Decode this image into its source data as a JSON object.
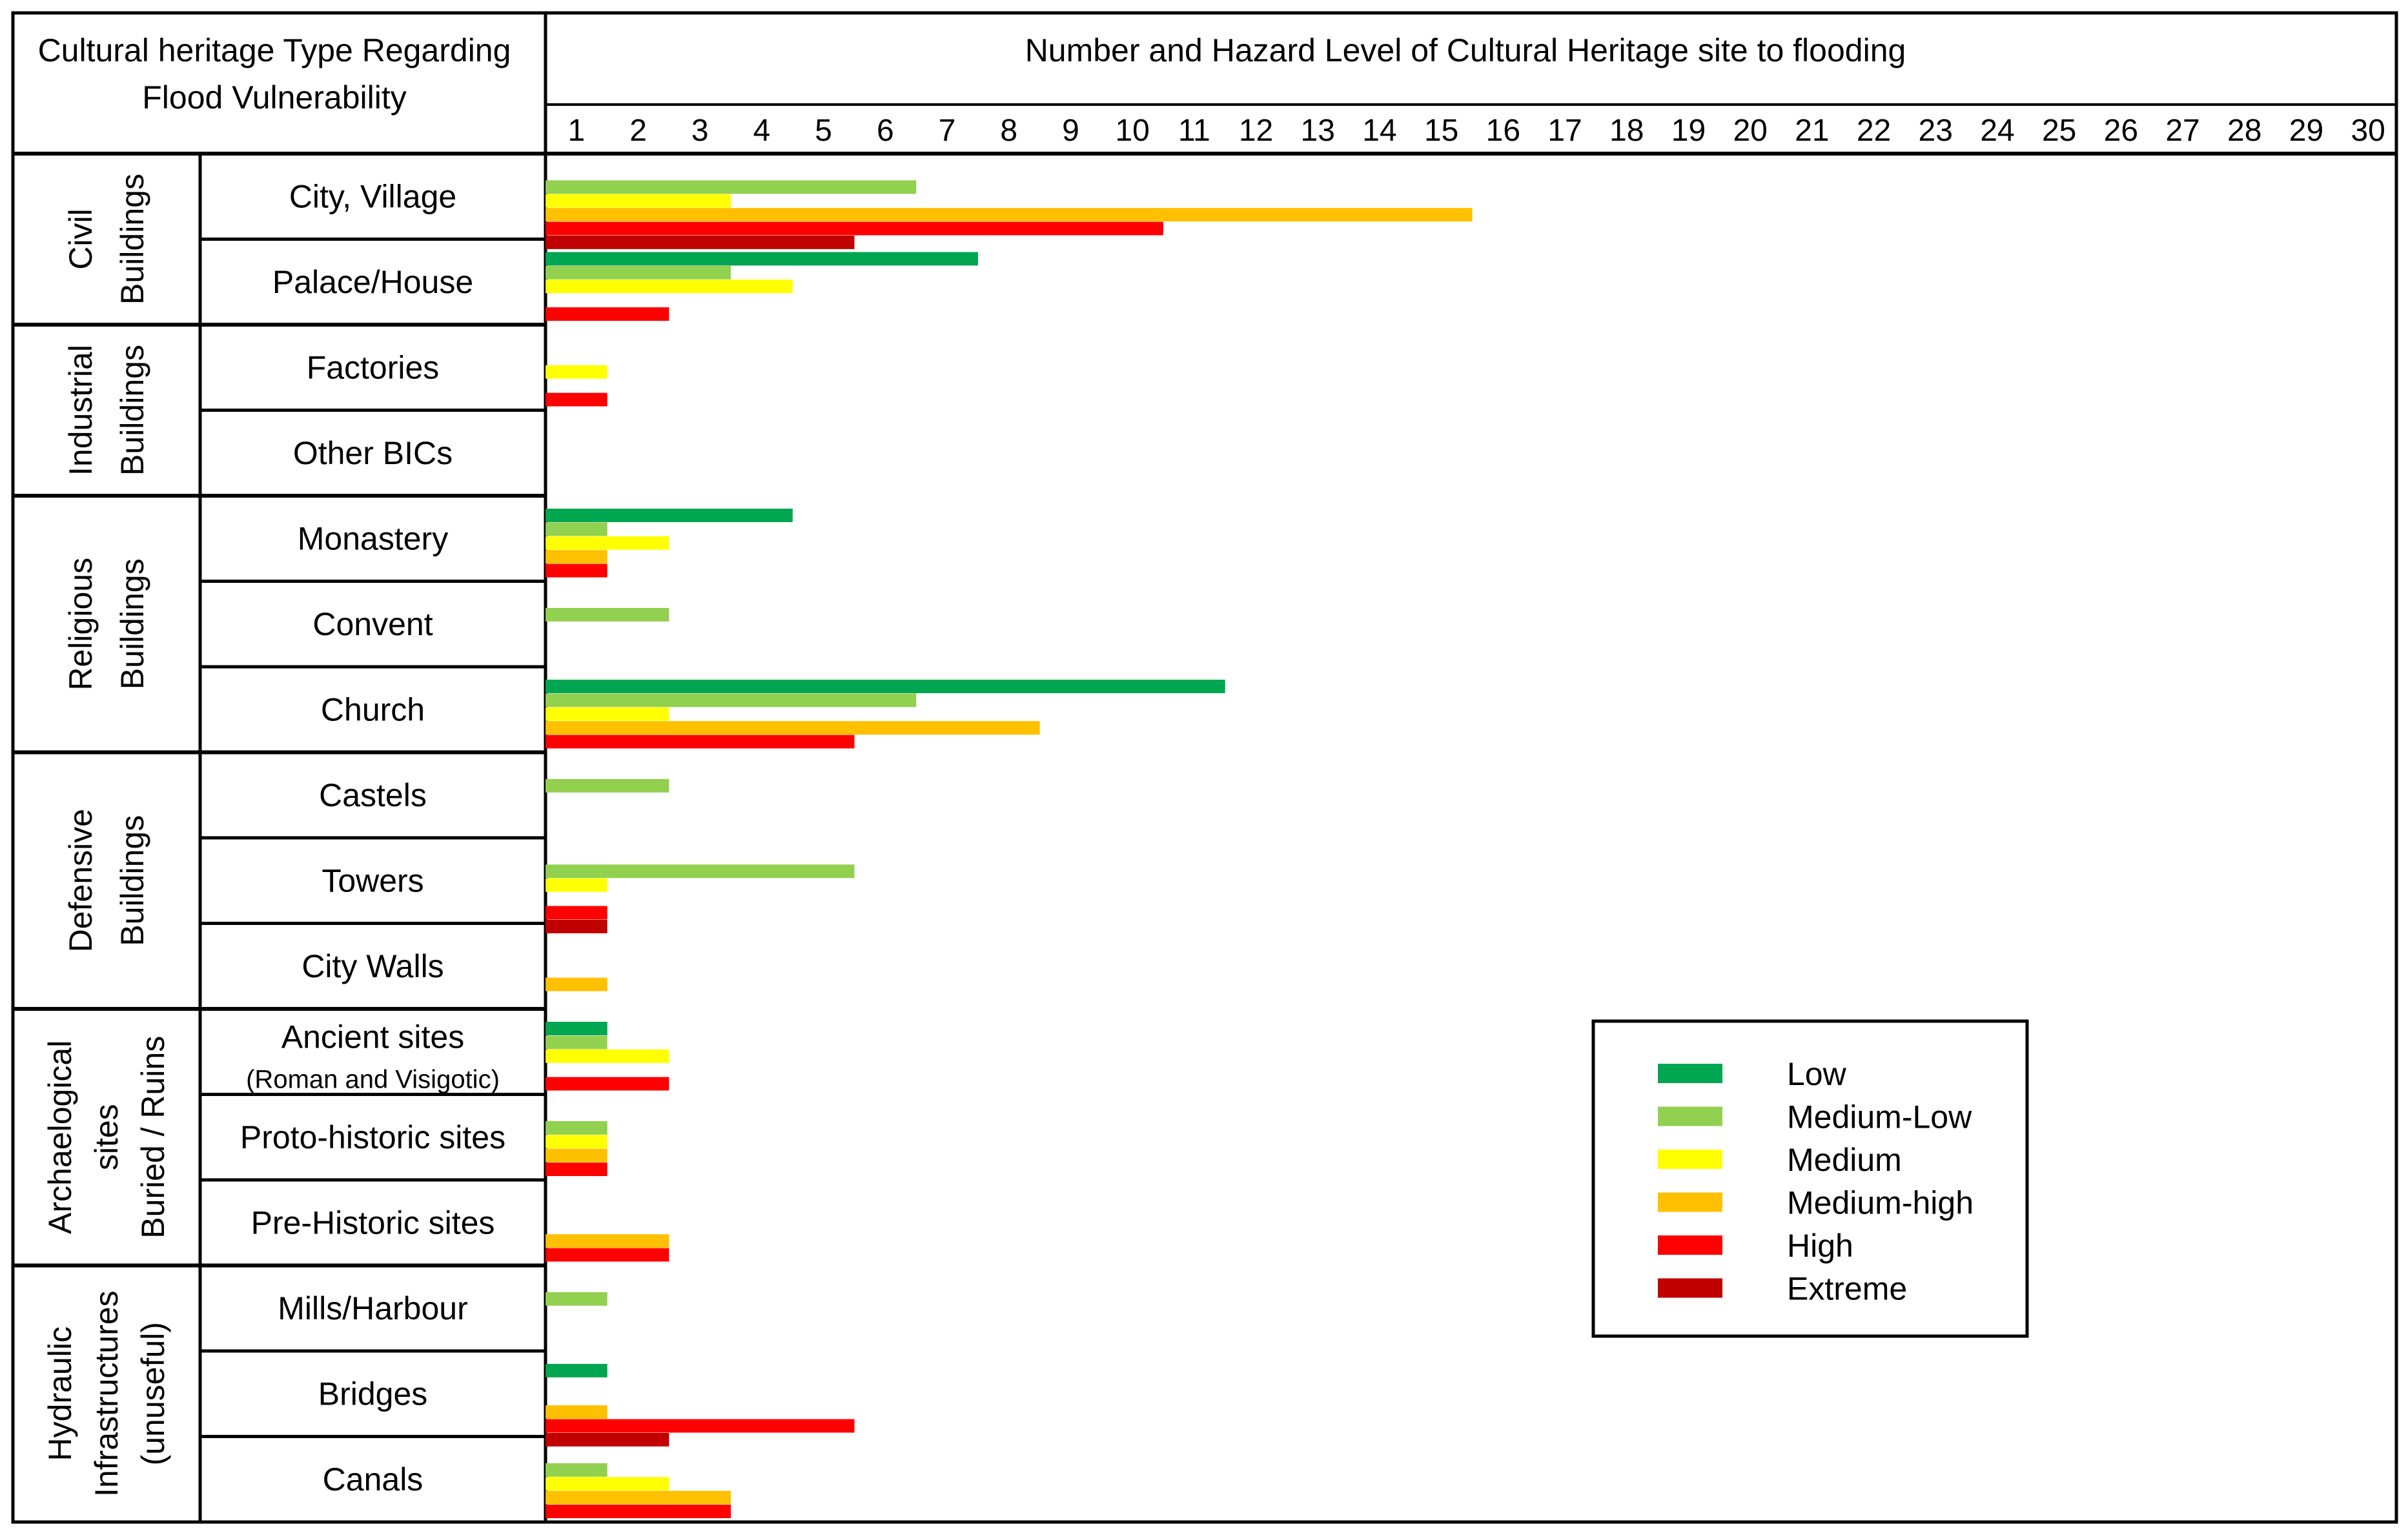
{
  "header": {
    "left_line1": "Cultural heritage Type Regarding",
    "left_line2": "Flood Vulnerability",
    "right": "Number and Hazard Level of Cultural Heritage site to flooding"
  },
  "groups": [
    {
      "lines": [
        "Civil",
        "Buildings"
      ]
    },
    {
      "lines": [
        "Industrial",
        "Buildings"
      ]
    },
    {
      "lines": [
        "Religious",
        "Buildings"
      ]
    },
    {
      "lines": [
        "Defensive",
        "Buildings"
      ]
    },
    {
      "lines": [
        "Archaelogical",
        "sites",
        "Buried / Ruins"
      ]
    },
    {
      "lines": [
        "Hydraulic",
        "Infrastructures",
        "(unuseful)"
      ]
    }
  ],
  "colors": {
    "Low": "#00a650",
    "Medium-Low": "#92d050",
    "Medium": "#ffff00",
    "Medium-high": "#ffc000",
    "High": "#ff0000",
    "Extreme": "#c00000"
  },
  "chart_data": {
    "type": "bar",
    "orientation": "horizontal",
    "title": "Number and Hazard Level of Cultural Heritage site to flooding",
    "xlim": [
      0.5,
      30.5
    ],
    "ticks": [
      1,
      2,
      3,
      4,
      5,
      6,
      7,
      8,
      9,
      10,
      11,
      12,
      13,
      14,
      15,
      16,
      17,
      18,
      19,
      20,
      21,
      22,
      23,
      24,
      25,
      26,
      27,
      28,
      29,
      30
    ],
    "series": [
      {
        "name": "Low"
      },
      {
        "name": "Medium-Low"
      },
      {
        "name": "Medium"
      },
      {
        "name": "Medium-high"
      },
      {
        "name": "High"
      },
      {
        "name": "Extreme"
      }
    ],
    "legend_position": "lower-right",
    "categories": [
      {
        "label": "City, Village",
        "values": {
          "Medium-Low": 6,
          "Medium": 3,
          "Medium-high": 15,
          "High": 10,
          "Extreme": 5
        }
      },
      {
        "label": "Palace/House",
        "values": {
          "Low": 7,
          "Medium-Low": 3,
          "Medium": 4,
          "High": 2
        }
      },
      {
        "label": "Factories",
        "values": {
          "Medium": 1,
          "High": 1
        }
      },
      {
        "label": "Other BICs",
        "values": {}
      },
      {
        "label": "Monastery",
        "values": {
          "Low": 4,
          "Medium-Low": 1,
          "Medium": 2,
          "Medium-high": 1,
          "High": 1
        }
      },
      {
        "label": "Convent",
        "values": {
          "Medium-Low": 2
        }
      },
      {
        "label": "Church",
        "values": {
          "Low": 11,
          "Medium-Low": 6,
          "Medium": 2,
          "Medium-high": 8,
          "High": 5
        }
      },
      {
        "label": "Castels",
        "values": {
          "Medium-Low": 2
        }
      },
      {
        "label": "Towers",
        "values": {
          "Medium-Low": 5,
          "Medium": 1,
          "High": 1,
          "Extreme": 1
        }
      },
      {
        "label": "City Walls",
        "values": {
          "Medium-high": 1
        }
      },
      {
        "label": "Ancient sites",
        "sublabel": "(Roman and Visigotic)",
        "values": {
          "Low": 1,
          "Medium-Low": 1,
          "Medium": 2,
          "High": 2
        }
      },
      {
        "label": "Proto-historic sites",
        "values": {
          "Medium-Low": 1,
          "Medium": 1,
          "Medium-high": 1,
          "High": 1
        }
      },
      {
        "label": "Pre-Historic sites",
        "values": {
          "Medium-high": 2,
          "High": 2
        }
      },
      {
        "label": "Mills/Harbour",
        "values": {
          "Medium-Low": 1
        }
      },
      {
        "label": "Bridges",
        "values": {
          "Low": 1,
          "Medium-high": 1,
          "High": 5,
          "Extreme": 2
        }
      },
      {
        "label": "Canals",
        "values": {
          "Medium-Low": 1,
          "Medium": 2,
          "Medium-high": 3,
          "High": 3
        }
      }
    ]
  }
}
